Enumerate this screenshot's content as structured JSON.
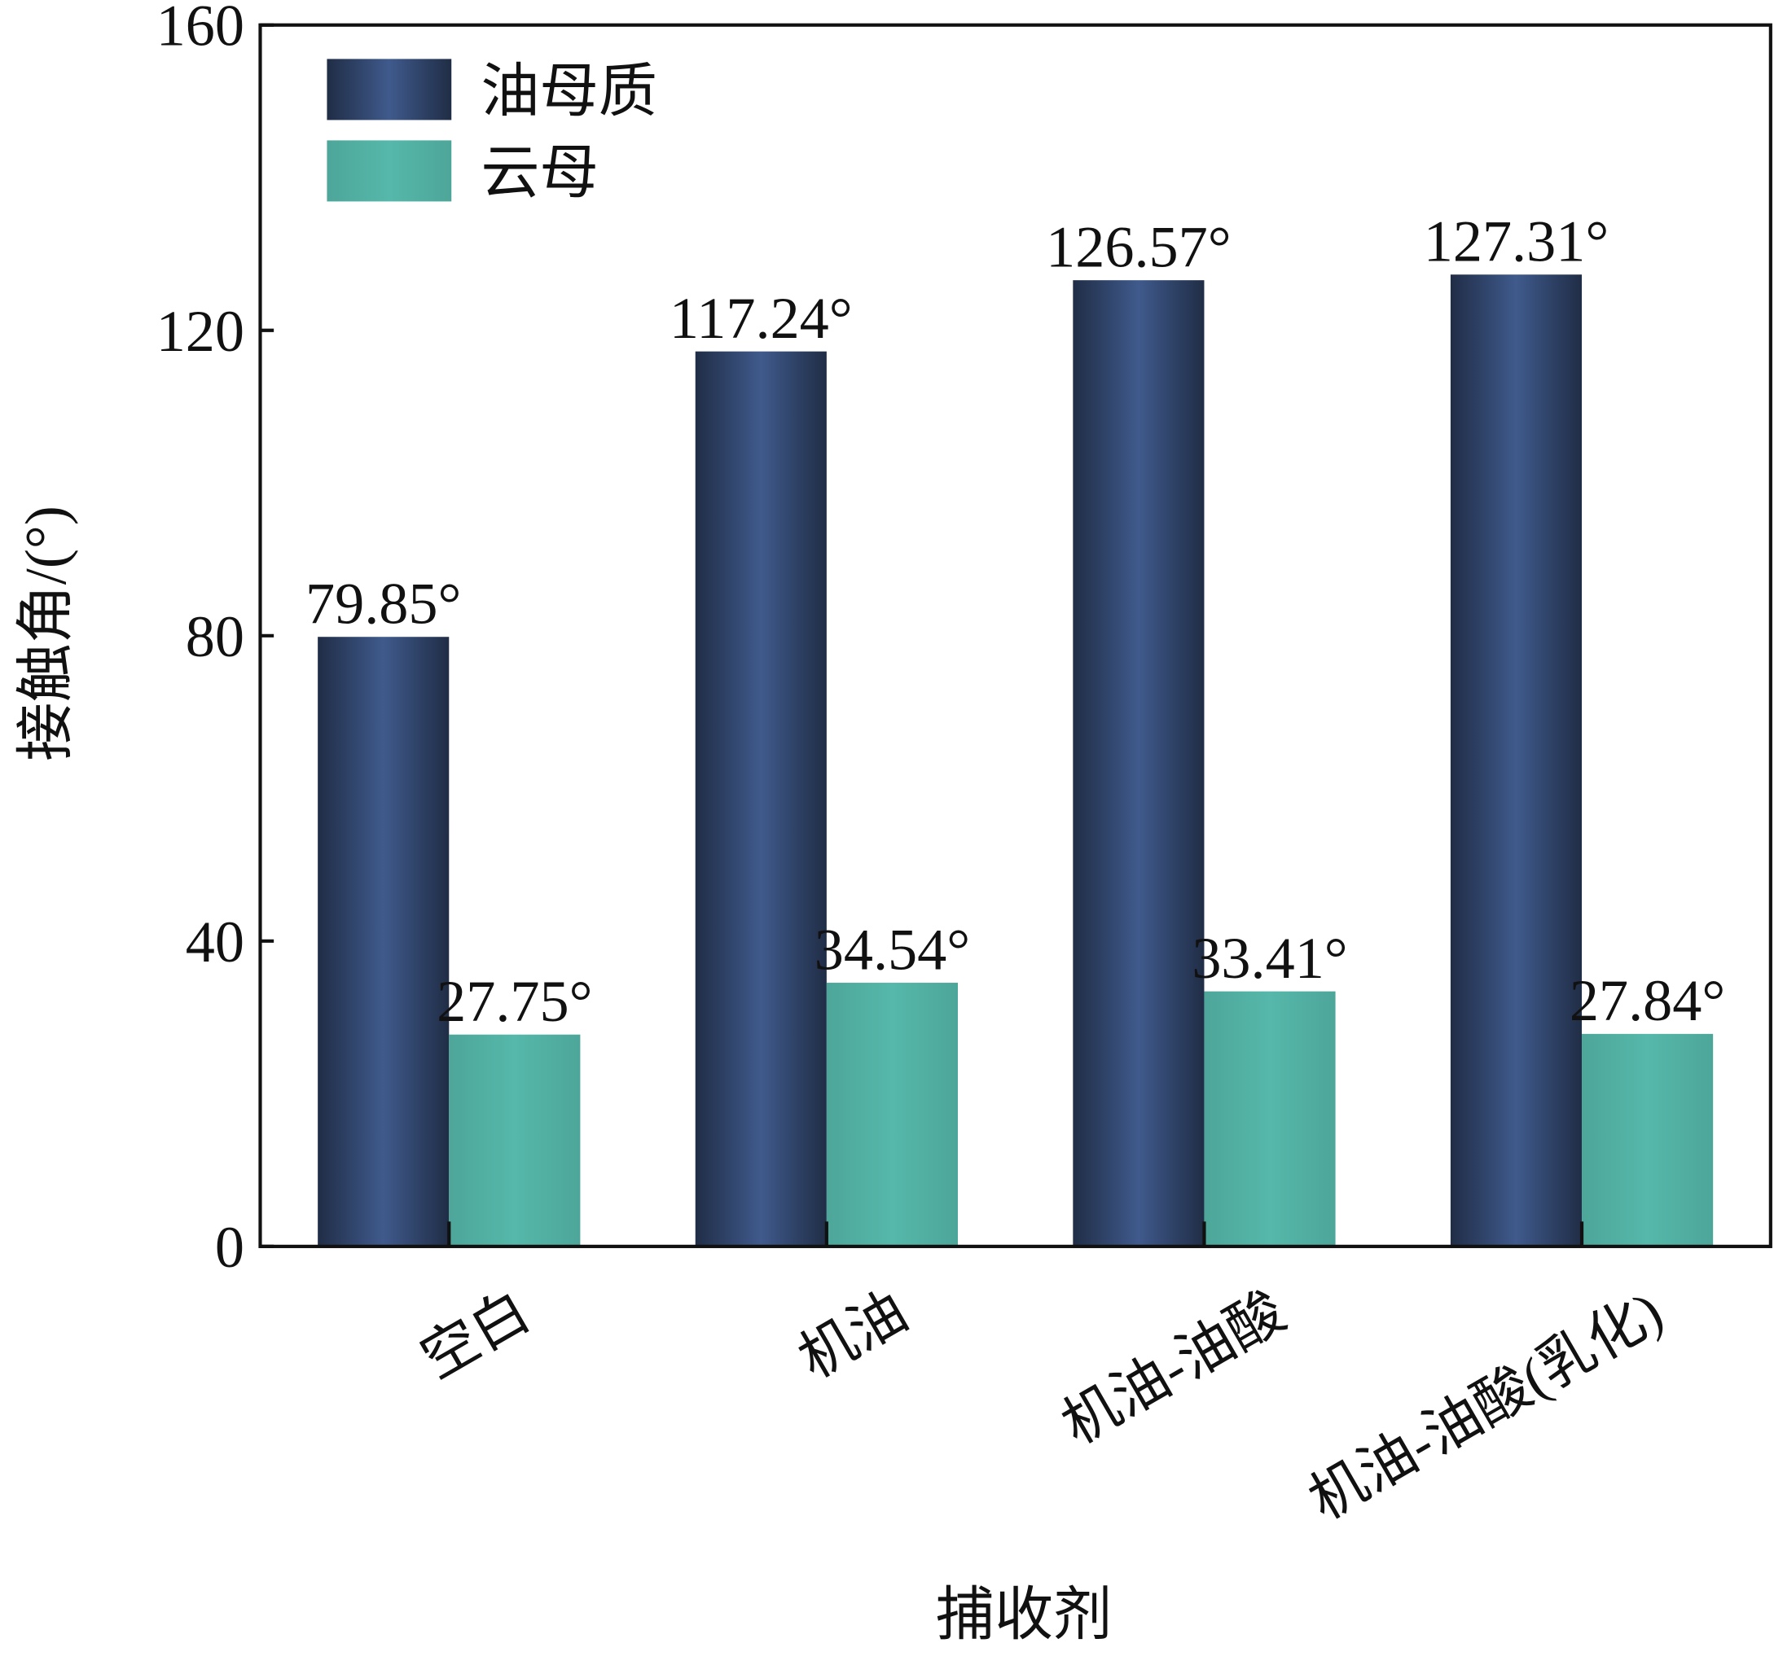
{
  "chart_data": {
    "type": "bar",
    "categories": [
      "空白",
      "机油",
      "机油-油酸",
      "机油-油酸(乳化)"
    ],
    "series": [
      {
        "name": "油母质",
        "color": "#3f5a8c",
        "values": [
          79.85,
          117.24,
          126.57,
          127.31
        ],
        "value_labels": [
          "79.85°",
          "117.24°",
          "126.57°",
          "127.31°"
        ]
      },
      {
        "name": "云母",
        "color": "#55b8aa",
        "values": [
          27.75,
          34.54,
          33.41,
          27.84
        ],
        "value_labels": [
          "27.75°",
          "34.54°",
          "33.41°",
          "27.84°"
        ]
      }
    ],
    "xlabel": "捕收剂",
    "ylabel": "接触角/(°)",
    "ylim": [
      0,
      160
    ],
    "yticks": [
      0,
      40,
      80,
      120,
      160
    ],
    "legend": "upper left"
  }
}
